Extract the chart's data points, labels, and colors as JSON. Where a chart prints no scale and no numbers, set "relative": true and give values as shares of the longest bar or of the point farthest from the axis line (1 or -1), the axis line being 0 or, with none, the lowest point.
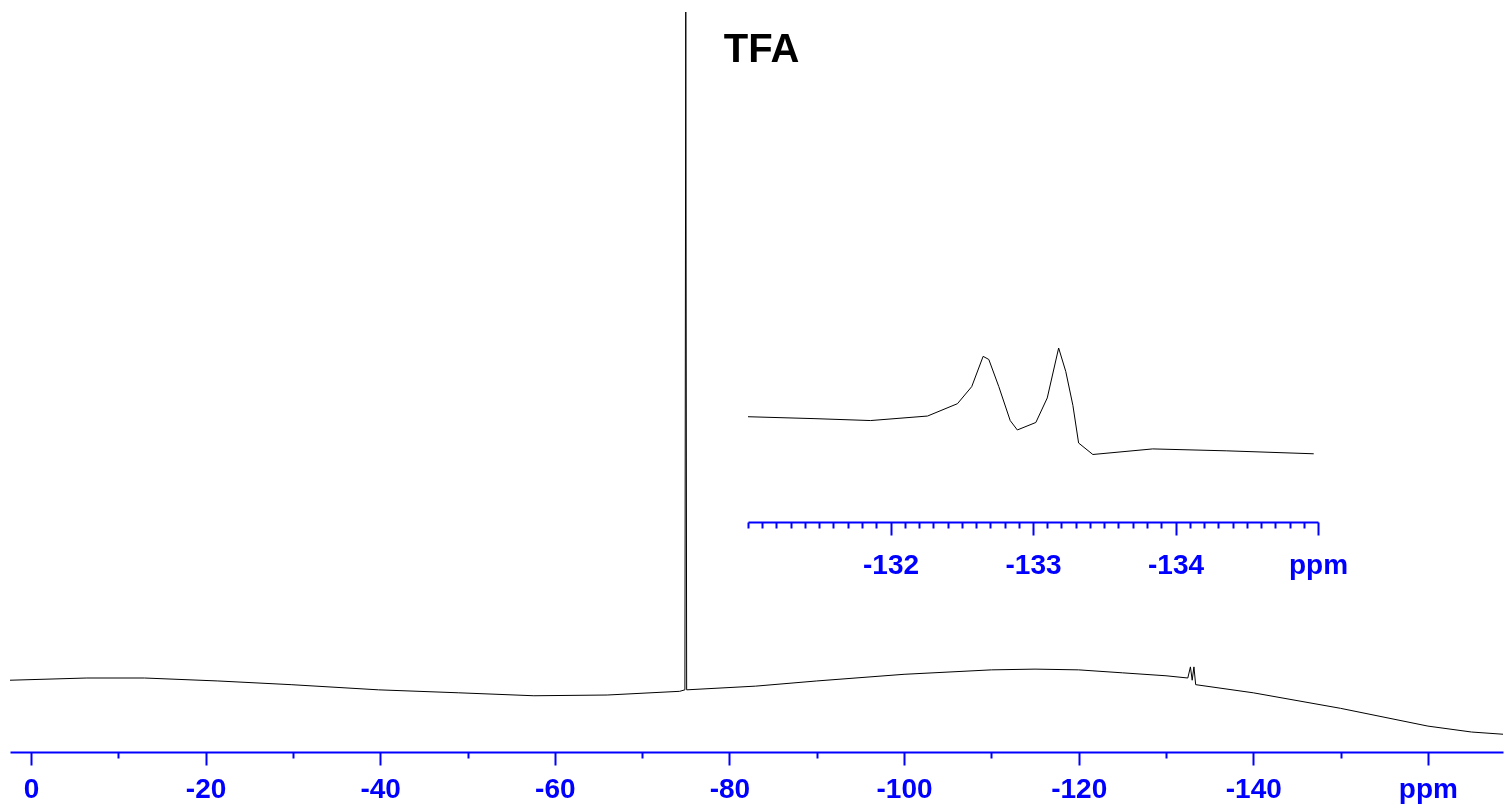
{
  "chart_data": [
    {
      "type": "line",
      "relative": true,
      "xlim": [
        2.4,
        -168.6
      ],
      "xticks": [
        0,
        {
          "value": -10,
          "label": null
        },
        -20,
        {
          "value": -30,
          "label": null
        },
        -40,
        {
          "value": -50,
          "label": null
        },
        -60,
        {
          "value": -70,
          "label": null
        },
        -80,
        {
          "value": -90,
          "label": null
        },
        -100,
        {
          "value": -110,
          "label": null
        },
        -120,
        {
          "value": -130,
          "label": null
        },
        -140,
        {
          "value": -150,
          "label": null
        },
        {
          "value": -160,
          "label": "ppm"
        }
      ],
      "x": [
        2.4,
        -6.4,
        -13,
        -21.4,
        -29.8,
        -39.8,
        -49,
        -57.6,
        -66,
        -74.3,
        -74.9,
        -75.0,
        -75.1,
        -83,
        -90,
        -100,
        -110,
        -115,
        -120,
        -125,
        -130,
        -132.5,
        -132.8,
        -133.0,
        -133.2,
        -133.4,
        -140,
        -150,
        -160,
        -165,
        -168.6
      ],
      "series": [
        {
          "color": "#000000",
          "values": [
            0.097,
            0.1,
            0.1,
            0.096,
            0.091,
            0.084,
            0.08,
            0.076,
            0.077,
            0.082,
            0.084,
            1.0,
            0.084,
            0.089,
            0.096,
            0.105,
            0.111,
            0.112,
            0.111,
            0.107,
            0.103,
            0.1,
            0.115,
            0.097,
            0.115,
            0.091,
            0.08,
            0.059,
            0.035,
            0.027,
            0.024
          ]
        }
      ],
      "annotations": [
        {
          "text": "TFA",
          "x": -75,
          "y": 1
        }
      ]
    },
    {
      "type": "line",
      "relative": true,
      "xlim": [
        -131.0,
        -135.0
      ],
      "xticks": [
        {
          "value": -131.0,
          "label": null
        },
        {
          "value": -131.1,
          "label": null
        },
        {
          "value": -131.2,
          "label": null
        },
        {
          "value": -131.3,
          "label": null
        },
        {
          "value": -131.4,
          "label": null
        },
        {
          "value": -131.5,
          "label": null
        },
        {
          "value": -131.6,
          "label": null
        },
        {
          "value": -131.7,
          "label": null
        },
        {
          "value": -131.8,
          "label": null
        },
        {
          "value": -131.9,
          "label": null
        },
        -132,
        {
          "value": -132.1,
          "label": null
        },
        {
          "value": -132.2,
          "label": null
        },
        {
          "value": -132.3,
          "label": null
        },
        {
          "value": -132.4,
          "label": null
        },
        {
          "value": -132.5,
          "label": null
        },
        {
          "value": -132.6,
          "label": null
        },
        {
          "value": -132.7,
          "label": null
        },
        {
          "value": -132.8,
          "label": null
        },
        {
          "value": -132.9,
          "label": null
        },
        -133,
        {
          "value": -133.1,
          "label": null
        },
        {
          "value": -133.2,
          "label": null
        },
        {
          "value": -133.3,
          "label": null
        },
        {
          "value": -133.4,
          "label": null
        },
        {
          "value": -133.5,
          "label": null
        },
        {
          "value": -133.6,
          "label": null
        },
        {
          "value": -133.7,
          "label": null
        },
        {
          "value": -133.8,
          "label": null
        },
        {
          "value": -133.9,
          "label": null
        },
        -134,
        {
          "value": -134.1,
          "label": null
        },
        {
          "value": -134.2,
          "label": null
        },
        {
          "value": -134.3,
          "label": null
        },
        {
          "value": -134.4,
          "label": null
        },
        {
          "value": -134.5,
          "label": null
        },
        {
          "value": -134.6,
          "label": null
        },
        {
          "value": -134.7,
          "label": null
        },
        {
          "value": -134.8,
          "label": null
        },
        {
          "value": -134.9,
          "label": null
        },
        {
          "value": -135.0,
          "label": "ppm"
        }
      ],
      "x": [
        -131.0,
        -131.47,
        -131.86,
        -132.26,
        -132.47,
        -132.57,
        -132.65,
        -132.69,
        -132.76,
        -132.84,
        -132.89,
        -133.02,
        -133.1,
        -133.18,
        -133.23,
        -133.28,
        -133.32,
        -133.42,
        -133.84,
        -134.36,
        -134.97
      ],
      "series": [
        {
          "color": "#000000",
          "values": [
            0.605,
            0.594,
            0.583,
            0.609,
            0.68,
            0.778,
            0.952,
            0.934,
            0.778,
            0.583,
            0.529,
            0.572,
            0.713,
            1.0,
            0.865,
            0.67,
            0.454,
            0.388,
            0.42,
            0.409,
            0.392
          ]
        }
      ]
    }
  ]
}
